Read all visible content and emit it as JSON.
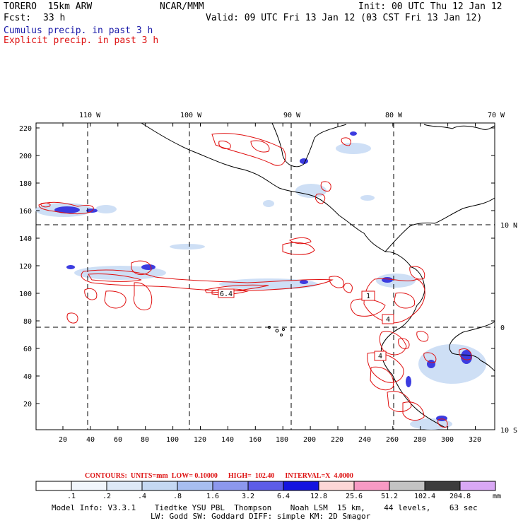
{
  "header": {
    "model": "TORERO  15km ARW",
    "org": "NCAR/MMM",
    "init": "Init: 00 UTC Thu 12 Jan 12",
    "fcst_label": "Fcst:",
    "fcst_value": "33 h",
    "valid": "Valid: 09 UTC Fri 13 Jan 12 (03 CST Fri 13 Jan 12)",
    "legend_cumulus": "Cumulus precip. in past 3 h",
    "legend_explicit": "Explicit precip. in past 3 h"
  },
  "colors": {
    "cumulus": "#1a1aa8",
    "explicit": "#dd1111",
    "contour": "#e01010"
  },
  "map": {
    "top_lon_labels": [
      "110 W",
      "100 W",
      "90 W",
      "80 W",
      "70 W"
    ],
    "right_lat_labels": [
      "10 N",
      "0",
      "10 S"
    ],
    "y_ticks": [
      "220",
      "200",
      "180",
      "160",
      "140",
      "120",
      "100",
      "80",
      "60",
      "40",
      "20"
    ],
    "x_ticks": [
      "20",
      "40",
      "60",
      "80",
      "100",
      "120",
      "140",
      "160",
      "180",
      "200",
      "220",
      "240",
      "260",
      "280",
      "300",
      "320"
    ],
    "contour_labels": [
      "6.4",
      "1",
      "4",
      "4"
    ]
  },
  "footer": {
    "contours_line": "CONTOURS:  UNITS=mm  LOW= 0.10000      HIGH=  102.40      INTERVAL=X  4.0000",
    "colorbar_values": [
      ".1",
      ".2",
      ".4",
      ".8",
      "1.6",
      "3.2",
      "6.4",
      "12.8",
      "25.6",
      "51.2",
      "102.4",
      "204.8"
    ],
    "colorbar_unit": "mm",
    "colorbar_colors": [
      "#ffffff",
      "#f1f6fc",
      "#dde9f7",
      "#c4d8f2",
      "#a7bef0",
      "#8c98ee",
      "#5c5ce8",
      "#1414e0",
      "#fdd6d6",
      "#f79ac4",
      "#c3c3c3",
      "#3c3c3c",
      "#d9a8f5"
    ],
    "model_info_1": "Model Info: V3.3.1    Tiedtke YSU PBL  Thompson    Noah LSM  15 km,    44 levels,    63 sec",
    "model_info_2": "LW: Godd SW: Goddard DIFF: simple KM: 2D Smagor"
  }
}
